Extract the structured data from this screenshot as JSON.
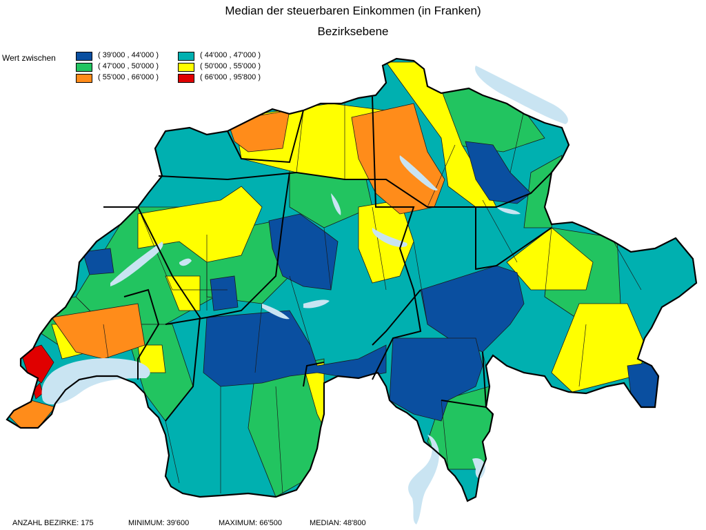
{
  "title": "Median der steuerbaren Einkommen (in Franken)",
  "subtitle": "Bezirksebene",
  "legend": {
    "label": "Wert zwischen",
    "classes": [
      {
        "range": "( 39'000 , 44'000 )",
        "color": "#0a4fa0"
      },
      {
        "range": "( 44'000 , 47'000 )",
        "color": "#00b0b0"
      },
      {
        "range": "( 47'000 , 50'000 )",
        "color": "#22c460"
      },
      {
        "range": "( 50'000 , 55'000 )",
        "color": "#ffff00"
      },
      {
        "range": "( 55'000 , 66'000 )",
        "color": "#ff8c1a"
      },
      {
        "range": "( 66'000 , 95'800 )",
        "color": "#e00000"
      }
    ]
  },
  "footer": {
    "count": "ANZAHL BEZIRKE: 175",
    "minimum": "MINIMUM: 39'600",
    "maximum": "MAXIMUM: 66'500",
    "median": "MEDIAN: 48'800"
  },
  "colors": {
    "lake": "#c9e4f2",
    "canton_border": "#000000",
    "district_border": "#1a1a1a"
  }
}
